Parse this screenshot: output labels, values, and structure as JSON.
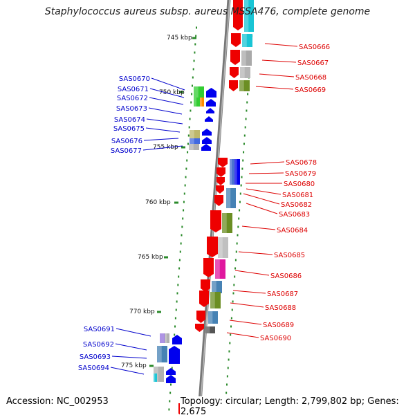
{
  "title": "Staphylococcus aureus subsp. aureus MSSA476, complete genome",
  "footer": {
    "accession": "Accession: NC_002953",
    "stats": "Topology: circular; Length: 2,799,802 bp; Genes: 2,675"
  },
  "colors": {
    "backbone": "#888888",
    "ruler": "#2a8a2a",
    "left_label": "#0000cc",
    "right_label": "#dd0000",
    "gene_left": "#0000ee",
    "gene_right": "#ee0000"
  },
  "scale_labels": [
    "745 kbp",
    "750 kbp",
    "755 kbp",
    "760 kbp",
    "765 kbp",
    "770 kbp",
    "775 kbp"
  ],
  "genes_left": [
    "SAS0670",
    "SAS0671",
    "SAS0672",
    "SAS0673",
    "SAS0674",
    "SAS0675",
    "SAS0676",
    "SAS0677",
    "SAS0691",
    "SAS0692",
    "SAS0693",
    "SAS0694"
  ],
  "genes_right": [
    "SAS0666",
    "SAS0667",
    "SAS0668",
    "SAS0669",
    "SAS0678",
    "SAS0679",
    "SAS0680",
    "SAS0681",
    "SAS0682",
    "SAS0683",
    "SAS0684",
    "SAS0685",
    "SAS0686",
    "SAS0687",
    "SAS0688",
    "SAS0689",
    "SAS0690"
  ]
}
